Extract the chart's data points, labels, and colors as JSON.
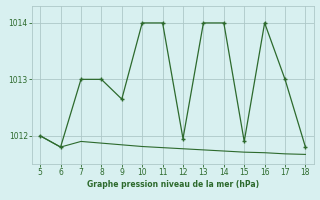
{
  "x": [
    5,
    6,
    7,
    8,
    9,
    10,
    11,
    12,
    13,
    14,
    15,
    16,
    17,
    18
  ],
  "y_zigzag": [
    1012.0,
    1011.8,
    1013.0,
    1013.0,
    1012.65,
    1014.0,
    1014.0,
    1011.95,
    1014.0,
    1014.0,
    1011.9,
    1014.0,
    1013.0,
    1011.8
  ],
  "y_baseline": [
    1012.0,
    1011.8,
    1011.9,
    1011.87,
    1011.84,
    1011.81,
    1011.79,
    1011.77,
    1011.75,
    1011.73,
    1011.71,
    1011.7,
    1011.68,
    1011.67
  ],
  "line_color": "#2d6a2d",
  "bg_color": "#d8f0f0",
  "grid_color": "#aec8c8",
  "xlabel": "Graphe pression niveau de la mer (hPa)",
  "ylim": [
    1011.5,
    1014.3
  ],
  "xlim": [
    4.6,
    18.4
  ],
  "yticks": [
    1012,
    1013,
    1014
  ],
  "xticks": [
    5,
    6,
    7,
    8,
    9,
    10,
    11,
    12,
    13,
    14,
    15,
    16,
    17,
    18
  ]
}
